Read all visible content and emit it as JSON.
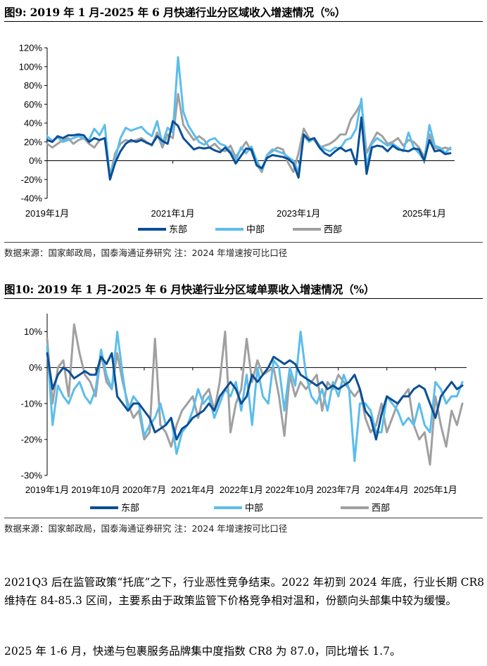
{
  "figure1": {
    "title": "图9:  2019 年 1 月-2025 年 6 月快递行业分区域收入增速情况（%）",
    "source": "数据来源：国家邮政局，国泰海通证券研究    注：2024 年增速按可比口径",
    "chart_data": {
      "type": "line",
      "ylim": [
        -40,
        120
      ],
      "yticks": [
        "120%",
        "100%",
        "80%",
        "60%",
        "40%",
        "20%",
        "0%",
        "-20%",
        "-40%"
      ],
      "ytick_values": [
        120,
        100,
        80,
        60,
        40,
        20,
        0,
        -20,
        -40
      ],
      "xtick_labels": [
        "2019年1月",
        "2021年1月",
        "2023年1月",
        "2025年1月"
      ],
      "xtick_index": [
        0,
        24,
        48,
        72
      ],
      "legend_position": "bottom",
      "series": [
        {
          "name": "东部",
          "color": "#0b4f96",
          "values": [
            22,
            20,
            26,
            24,
            27,
            27,
            28,
            27,
            20,
            24,
            22,
            24,
            -20,
            -2,
            10,
            18,
            22,
            20,
            22,
            19,
            17,
            26,
            21,
            18,
            42,
            37,
            24,
            18,
            12,
            14,
            13,
            14,
            11,
            9,
            14,
            8,
            -3,
            5,
            13,
            12,
            -5,
            -8,
            3,
            6,
            5,
            4,
            2,
            -3,
            -18,
            28,
            22,
            24,
            14,
            8,
            5,
            10,
            14,
            10,
            12,
            -4,
            46,
            -14,
            14,
            16,
            15,
            10,
            16,
            12,
            11,
            10,
            13,
            12,
            0,
            22,
            10,
            11,
            7,
            8
          ],
          "widths": [
            3
          ]
        },
        {
          "name": "中部",
          "color": "#5bbdec",
          "values": [
            26,
            21,
            25,
            20,
            22,
            24,
            26,
            24,
            22,
            34,
            27,
            38,
            -19,
            2,
            24,
            35,
            32,
            34,
            36,
            30,
            26,
            42,
            18,
            35,
            30,
            110,
            52,
            37,
            28,
            20,
            17,
            22,
            24,
            18,
            16,
            10,
            0,
            14,
            8,
            15,
            0,
            -10,
            6,
            12,
            10,
            8,
            4,
            0,
            -12,
            27,
            20,
            24,
            16,
            12,
            10,
            14,
            13,
            22,
            24,
            34,
            66,
            -6,
            18,
            24,
            20,
            16,
            18,
            14,
            10,
            30,
            14,
            8,
            0,
            38,
            16,
            14,
            8,
            14
          ],
          "widths": [
            3
          ]
        },
        {
          "name": "西部",
          "color": "#a0a0a0",
          "values": [
            18,
            14,
            18,
            22,
            24,
            18,
            22,
            24,
            18,
            14,
            22,
            24,
            -16,
            8,
            18,
            22,
            20,
            22,
            24,
            20,
            16,
            30,
            14,
            28,
            24,
            71,
            38,
            30,
            22,
            26,
            22,
            14,
            18,
            12,
            10,
            16,
            4,
            12,
            20,
            10,
            -4,
            -12,
            6,
            10,
            14,
            12,
            -2,
            -12,
            8,
            34,
            24,
            22,
            14,
            16,
            18,
            22,
            28,
            28,
            44,
            52,
            62,
            8,
            20,
            30,
            26,
            18,
            20,
            24,
            16,
            22,
            20,
            14,
            4,
            28,
            14,
            12,
            14,
            12
          ]
        }
      ]
    }
  },
  "figure2": {
    "title": "图10:  2019 年 1 月-2025 年 6 月快递行业分区域单票收入增速情况（%）",
    "source": "数据来源：国家邮政局，国泰海通证券研究    注：2024 年增速按可比口径",
    "chart_data": {
      "type": "line",
      "ylim": [
        -30,
        15
      ],
      "yticks": [
        "10%",
        "0%",
        "-10%",
        "-20%",
        "-30%"
      ],
      "ytick_values": [
        10,
        0,
        -10,
        -20,
        -30
      ],
      "xtick_labels": [
        "2019年1月",
        "2019年10月",
        "2020年7月",
        "2021年4月",
        "2022年1月",
        "2022年10月",
        "2023年7月",
        "2024年4月",
        "2025年1月"
      ],
      "xtick_index": [
        0,
        9,
        18,
        27,
        36,
        45,
        54,
        63,
        72
      ],
      "legend_position": "bottom",
      "series": [
        {
          "name": "东部",
          "color": "#0b4f96",
          "values": [
            4,
            -6,
            -2,
            0,
            -1,
            -3,
            -2,
            -1,
            -2,
            -2,
            3,
            1,
            4,
            -8,
            -10,
            -12,
            -10,
            -10,
            -12,
            -14,
            -18,
            -17,
            -16,
            -14,
            -20,
            -17,
            -16,
            -14,
            -13,
            -12,
            -10,
            -12,
            -8,
            -6,
            -4,
            -6,
            -10,
            -8,
            -2,
            -4,
            -2,
            0,
            3,
            2,
            1,
            2,
            1,
            -2,
            -3,
            -4,
            -5,
            -4,
            -6,
            -5,
            -6,
            -5,
            -4,
            -2,
            -6,
            -12,
            -14,
            -20,
            -13,
            -8,
            -9,
            -10,
            -8,
            -8,
            -6,
            -5,
            -6,
            -10,
            -14,
            -8,
            -6,
            -4,
            -6,
            -5
          ],
          "widths": [
            3
          ]
        },
        {
          "name": "中部",
          "color": "#5bbdec",
          "values": [
            6,
            -16,
            -5,
            -8,
            -10,
            -6,
            -4,
            -8,
            -10,
            -6,
            5,
            -2,
            -6,
            10,
            -2,
            -12,
            -8,
            -10,
            -19,
            -16,
            -14,
            -10,
            -16,
            -14,
            -24,
            -18,
            -16,
            -12,
            -6,
            -10,
            -8,
            -14,
            -10,
            -6,
            -8,
            -4,
            -12,
            -2,
            -16,
            0,
            -8,
            -10,
            2,
            0,
            -12,
            0,
            -5,
            10,
            -2,
            -8,
            -10,
            -6,
            -12,
            -4,
            -8,
            -2,
            -6,
            -26,
            -10,
            -10,
            -12,
            -18,
            -18,
            -8,
            -10,
            -12,
            -16,
            -14,
            -16,
            -10,
            -16,
            -18,
            -4,
            -6,
            -10,
            -8,
            -8,
            -4
          ],
          "widths": [
            3
          ]
        },
        {
          "name": "西部",
          "color": "#a0a0a0",
          "values": [
            8,
            -10,
            0,
            2,
            -8,
            12,
            4,
            -2,
            -4,
            -8,
            4,
            -4,
            -6,
            4,
            -4,
            -10,
            -14,
            -12,
            -20,
            -18,
            8,
            -16,
            -18,
            -22,
            -16,
            -12,
            -10,
            -8,
            -14,
            -8,
            -6,
            -12,
            -4,
            10,
            -18,
            -10,
            -6,
            8,
            -4,
            2,
            -2,
            -1,
            0,
            -8,
            -19,
            -2,
            -8,
            -4,
            -6,
            -4,
            -2,
            -12,
            -4,
            -6,
            -2,
            -4,
            -6,
            -8,
            -6,
            -14,
            -18,
            -16,
            -10,
            -18,
            -14,
            -10,
            -8,
            -6,
            -16,
            -20,
            -18,
            -27,
            -8,
            -16,
            -22,
            -12,
            -16,
            -10
          ],
          "widths": [
            3
          ]
        }
      ]
    }
  },
  "paragraph1": "2021Q3 后在监管政策“托底”之下，行业恶性竞争结束。2022 年初到 2024 年底，行业长期 CR8 维持在 84-85.3 区间，主要系由于政策监管下价格竞争相对温和，份额向头部集中较为缓慢。",
  "paragraph2": "2025 年 1-6 月，快递与包裹服务品牌集中度指数 CR8 为 87.0，同比增长 1.7。"
}
